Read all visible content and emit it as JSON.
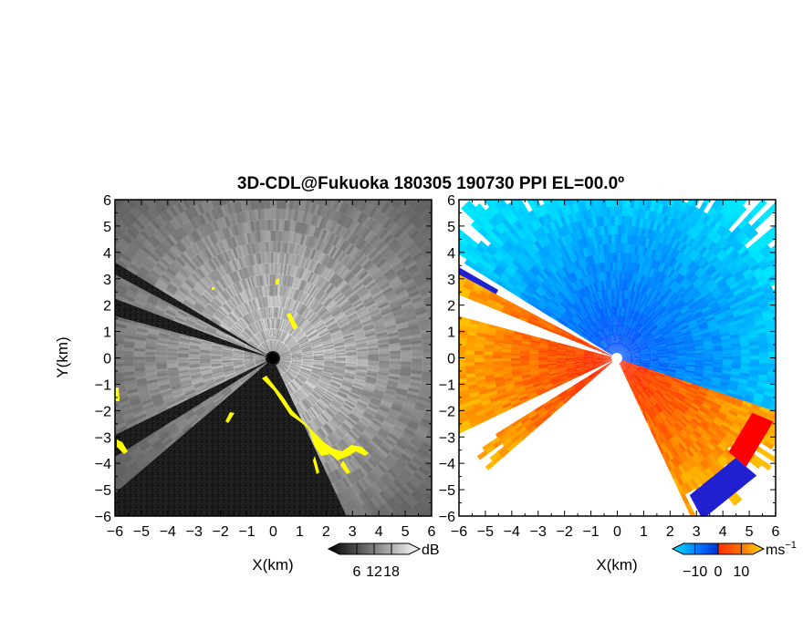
{
  "chart_data": {
    "type": "heatmap",
    "title": "3D-CDL@Fukuoka 180305 190730 PPI EL=00.0º",
    "panels": [
      {
        "name": "reflectivity",
        "xlabel": "X(km)",
        "ylabel": "Y(km)",
        "xlim": [
          -6,
          6
        ],
        "ylim": [
          -6,
          6
        ],
        "xticks": [
          "−6",
          "−5",
          "−4",
          "−3",
          "−2",
          "−1",
          "0",
          "1",
          "2",
          "3",
          "4",
          "5",
          "6"
        ],
        "yticks": [
          "6",
          "5",
          "4",
          "3",
          "2",
          "1",
          "0",
          "−1",
          "−2",
          "−3",
          "−4",
          "−5",
          "−6"
        ],
        "colorbar": {
          "unit": "dB",
          "ticks": [
            "6",
            "12",
            "18"
          ],
          "range": [
            0,
            24
          ]
        },
        "colors": {
          "low": "#000000",
          "high": "#ffffff",
          "flag": "#ffff00"
        }
      },
      {
        "name": "doppler-velocity",
        "xlabel": "X(km)",
        "xlim": [
          -6,
          6
        ],
        "ylim": [
          -6,
          6
        ],
        "xticks": [
          "−6",
          "−5",
          "−4",
          "−3",
          "−2",
          "−1",
          "0",
          "1",
          "2",
          "3",
          "4",
          "5",
          "6"
        ],
        "yticks": [
          "6",
          "5",
          "4",
          "3",
          "2",
          "1",
          "0",
          "−1",
          "−2",
          "−3",
          "−4",
          "−5",
          "−6"
        ],
        "colorbar": {
          "unit": "ms",
          "unit_sup": "−1",
          "ticks": [
            "−10",
            "0",
            "10"
          ],
          "range": [
            -15,
            15
          ]
        },
        "colors": {
          "neg_far": "#00e5ff",
          "neg": "#0050ff",
          "pos": "#ff4000",
          "pos_far": "#ffd400",
          "fold_neg": "#2020d0",
          "fold_pos": "#ff0000"
        }
      }
    ]
  }
}
